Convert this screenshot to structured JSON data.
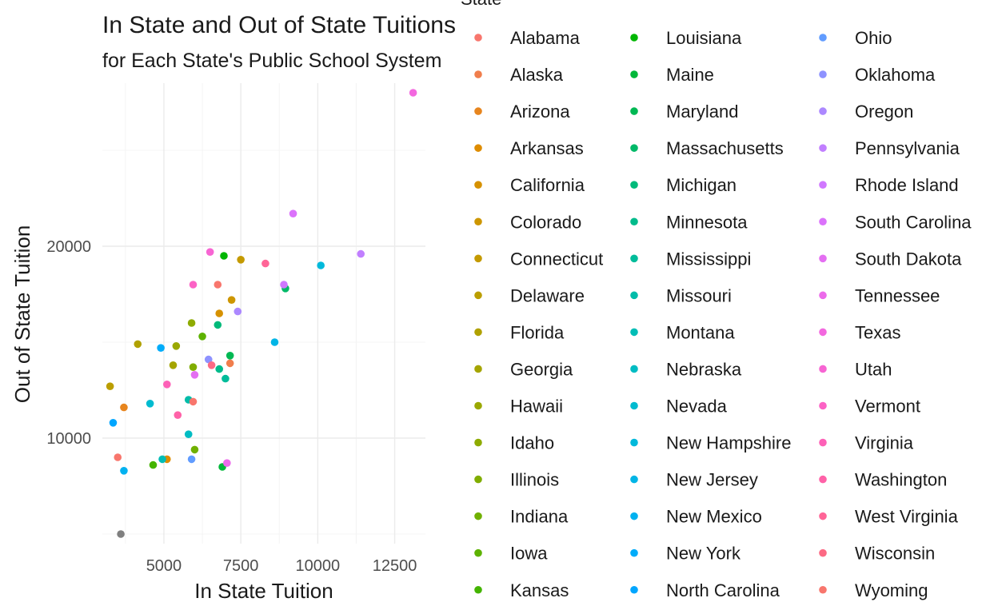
{
  "chart_data": {
    "type": "scatter",
    "title": "In State and Out of State Tuitions",
    "subtitle": "for Each State's Public School System",
    "xlabel": "In State Tuition",
    "ylabel": "Out of State Tuition",
    "xlim": [
      3000,
      13500
    ],
    "ylim": [
      4500,
      28500
    ],
    "x_ticks": [
      5000,
      7500,
      10000,
      12500
    ],
    "y_ticks": [
      10000,
      20000
    ],
    "grid": true,
    "legend_title": "State",
    "legend_placement": "right",
    "series": [
      {
        "name": "Alabama",
        "color": "#F8766D",
        "points": [
          [
            3500,
            9000
          ]
        ]
      },
      {
        "name": "Alaska",
        "color": "#F07E4C",
        "points": [
          [
            7150,
            13900
          ]
        ]
      },
      {
        "name": "Arizona",
        "color": "#E7851E",
        "points": [
          [
            3700,
            11600
          ]
        ]
      },
      {
        "name": "Arkansas",
        "color": "#DE8C00",
        "points": [
          [
            5100,
            8900
          ]
        ]
      },
      {
        "name": "California",
        "color": "#D69100",
        "points": [
          [
            6800,
            16500
          ]
        ]
      },
      {
        "name": "Colorado",
        "color": "#CD9600",
        "points": [
          [
            7200,
            17200
          ]
        ]
      },
      {
        "name": "Connecticut",
        "color": "#C49A00",
        "points": [
          [
            7500,
            19300
          ]
        ]
      },
      {
        "name": "Delaware",
        "color": "#BB9E00",
        "points": [
          [
            3250,
            12700
          ]
        ]
      },
      {
        "name": "Florida",
        "color": "#B0A100",
        "points": [
          [
            4150,
            14900
          ]
        ]
      },
      {
        "name": "Georgia",
        "color": "#A5A500",
        "points": [
          [
            5300,
            13800
          ]
        ]
      },
      {
        "name": "Hawaii",
        "color": "#9AA800",
        "points": [
          [
            5400,
            14800
          ]
        ]
      },
      {
        "name": "Idaho",
        "color": "#8EAB00",
        "points": [
          [
            5900,
            16000
          ]
        ]
      },
      {
        "name": "Illinois",
        "color": "#80AD00",
        "points": [
          [
            5950,
            13700
          ]
        ]
      },
      {
        "name": "Indiana",
        "color": "#70B000",
        "points": [
          [
            6000,
            9400
          ]
        ]
      },
      {
        "name": "Iowa",
        "color": "#5DB200",
        "points": [
          [
            6250,
            15300
          ]
        ]
      },
      {
        "name": "Kansas",
        "color": "#44B400",
        "points": [
          [
            4650,
            8600
          ]
        ]
      },
      {
        "name": "Louisiana",
        "color": "#00B602",
        "points": [
          [
            6950,
            19500
          ]
        ]
      },
      {
        "name": "Maine",
        "color": "#00B739",
        "points": [
          [
            6900,
            8500
          ]
        ]
      },
      {
        "name": "Maryland",
        "color": "#00B853",
        "points": [
          [
            7150,
            14300
          ]
        ]
      },
      {
        "name": "Massachusetts",
        "color": "#00B968",
        "points": [
          [
            8950,
            17800
          ]
        ]
      },
      {
        "name": "Michigan",
        "color": "#00BA7A",
        "points": [
          [
            6750,
            15900
          ]
        ]
      },
      {
        "name": "Minnesota",
        "color": "#00BB8B",
        "points": [
          [
            6800,
            13600
          ]
        ]
      },
      {
        "name": "Mississippi",
        "color": "#00BC9A",
        "points": [
          [
            7000,
            13100
          ]
        ]
      },
      {
        "name": "Missouri",
        "color": "#00BCA9",
        "points": [
          [
            5800,
            12000
          ]
        ]
      },
      {
        "name": "Montana",
        "color": "#00BDB6",
        "points": [
          [
            4950,
            8900
          ]
        ]
      },
      {
        "name": "Nebraska",
        "color": "#00BCC3",
        "points": [
          [
            5800,
            10200
          ]
        ]
      },
      {
        "name": "Nevada",
        "color": "#00BBD0",
        "points": [
          [
            4550,
            11800
          ]
        ]
      },
      {
        "name": "New Hampshire",
        "color": "#00B9DB",
        "points": [
          [
            10100,
            19000
          ]
        ]
      },
      {
        "name": "New Jersey",
        "color": "#00B5E6",
        "points": [
          [
            8600,
            15000
          ]
        ]
      },
      {
        "name": "New Mexico",
        "color": "#00B1F0",
        "points": [
          [
            3700,
            8300
          ]
        ]
      },
      {
        "name": "New York",
        "color": "#00ACFA",
        "points": [
          [
            4900,
            14700
          ]
        ]
      },
      {
        "name": "North Carolina",
        "color": "#00A6FF",
        "points": [
          [
            3350,
            10800
          ]
        ]
      },
      {
        "name": "Ohio",
        "color": "#619CFF",
        "points": [
          [
            5900,
            8900
          ]
        ]
      },
      {
        "name": "Oklahoma",
        "color": "#8E92FF",
        "points": [
          [
            6450,
            14100
          ]
        ]
      },
      {
        "name": "Oregon",
        "color": "#AC88FF",
        "points": [
          [
            7400,
            16600
          ]
        ]
      },
      {
        "name": "Pennsylvania",
        "color": "#C17FFF",
        "points": [
          [
            11400,
            19600
          ]
        ]
      },
      {
        "name": "Rhode Island",
        "color": "#D077FF",
        "points": [
          [
            8900,
            18000
          ]
        ]
      },
      {
        "name": "South Carolina",
        "color": "#DB72FB",
        "points": [
          [
            9200,
            21700
          ]
        ]
      },
      {
        "name": "South Dakota",
        "color": "#E46FF2",
        "points": [
          [
            6000,
            13300
          ]
        ]
      },
      {
        "name": "Tennessee",
        "color": "#EC6BEA",
        "points": [
          [
            7050,
            8700
          ]
        ]
      },
      {
        "name": "Texas",
        "color": "#F368DF",
        "points": [
          [
            13100,
            28000
          ]
        ]
      },
      {
        "name": "Utah",
        "color": "#F765D3",
        "points": [
          [
            6500,
            19700
          ]
        ]
      },
      {
        "name": "Vermont",
        "color": "#FC62C5",
        "points": [
          [
            5950,
            18000
          ]
        ]
      },
      {
        "name": "Virginia",
        "color": "#FD61B7",
        "points": [
          [
            5100,
            12800
          ]
        ]
      },
      {
        "name": "Washington",
        "color": "#FF62A8",
        "points": [
          [
            5450,
            11200
          ]
        ]
      },
      {
        "name": "West Virginia",
        "color": "#FF6597",
        "points": [
          [
            8300,
            19100
          ]
        ]
      },
      {
        "name": "Wisconsin",
        "color": "#FC6A84",
        "points": [
          [
            6550,
            13800
          ]
        ]
      },
      {
        "name": "Wyoming",
        "color": "#F8766D",
        "points": [
          [
            5950,
            11900
          ]
        ]
      }
    ],
    "extra_points": [
      {
        "color": "#7F7F7F",
        "points": [
          [
            3600,
            5000
          ]
        ]
      },
      {
        "color": "#F8766D",
        "points": [
          [
            6750,
            18000
          ]
        ]
      }
    ]
  }
}
